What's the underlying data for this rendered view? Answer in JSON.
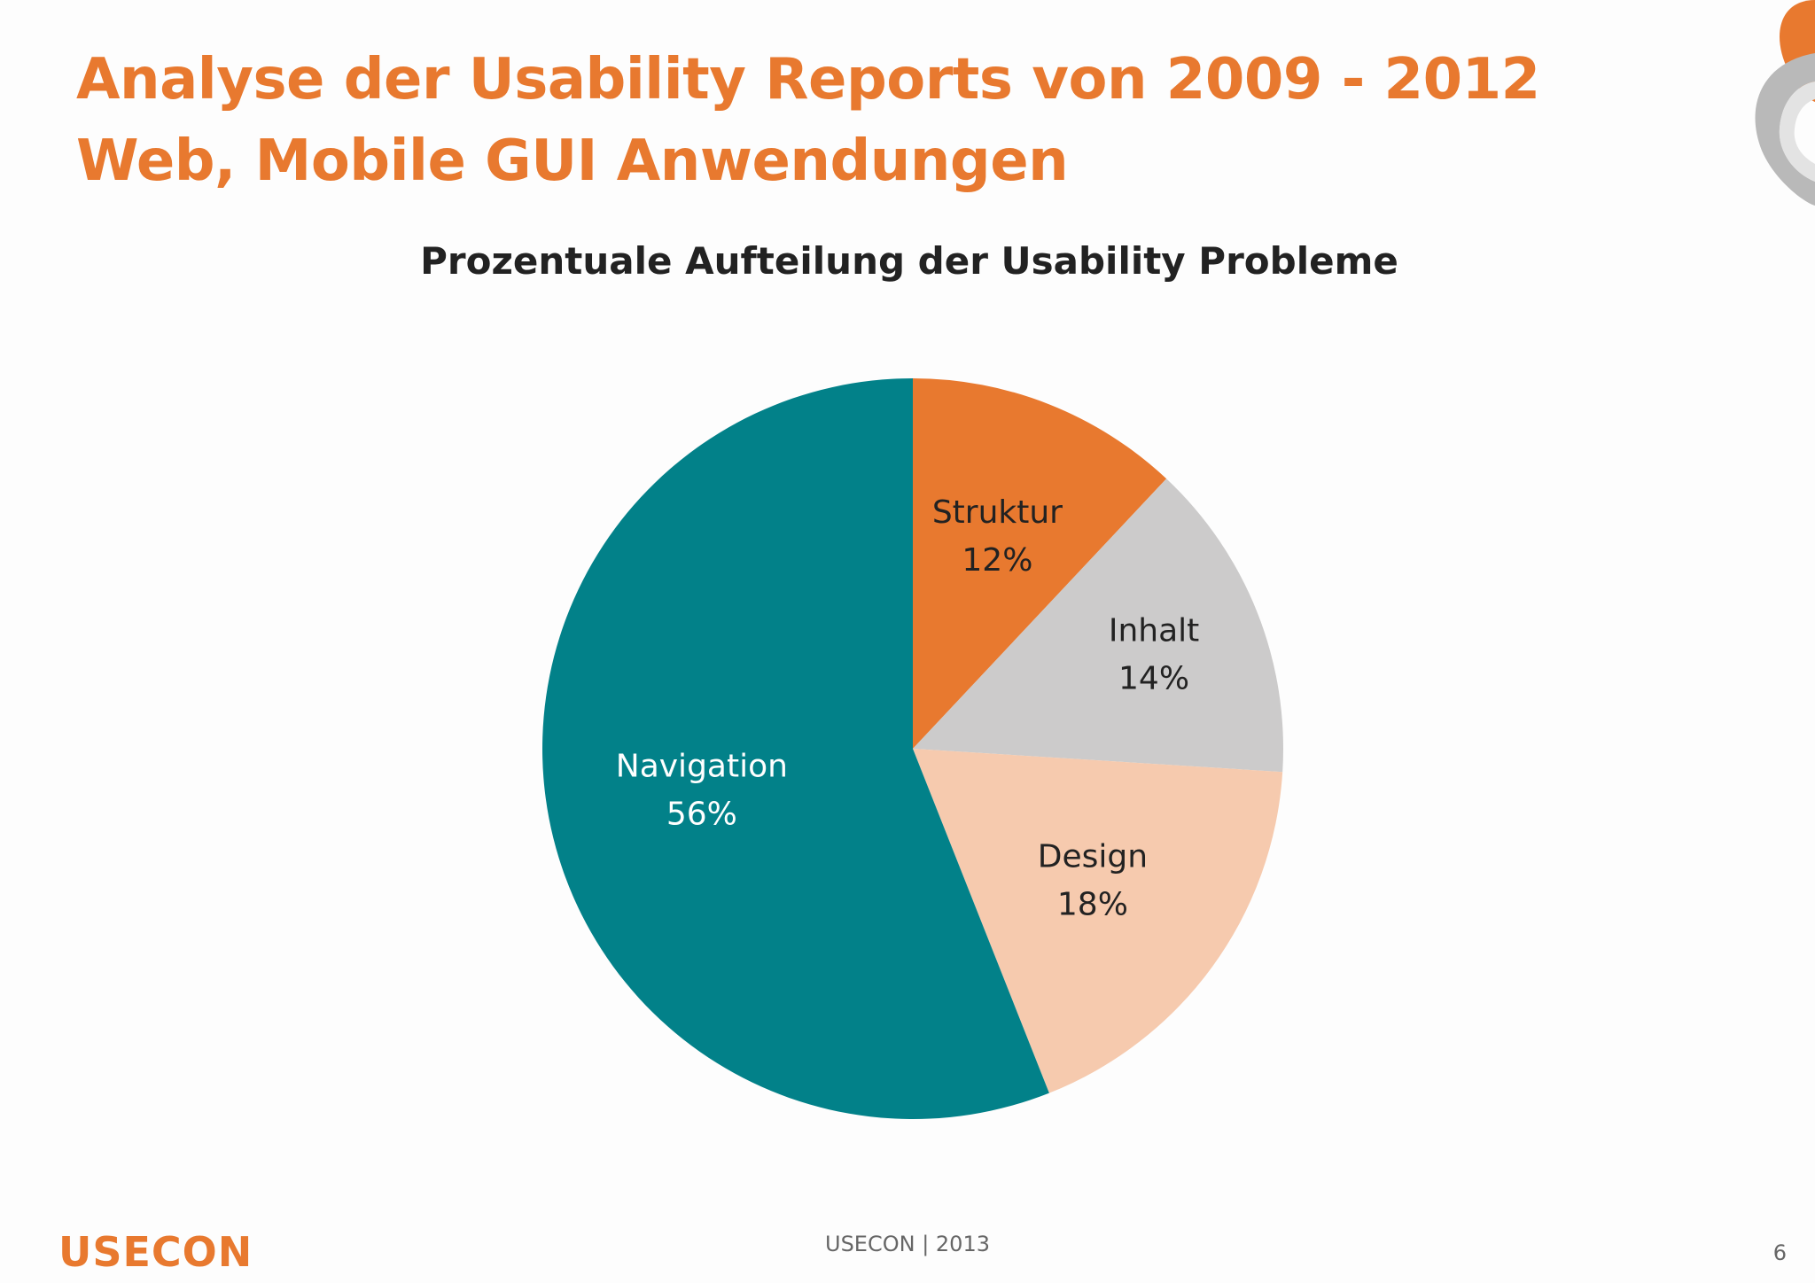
{
  "slide": {
    "title_lines": [
      "Analyse der Usability Reports von 2009 - 2012",
      "Web, Mobile GUI Anwendungen"
    ],
    "footer_text": "USECON  | 2013",
    "page_number": "6",
    "logo_text": "USECON"
  },
  "colors": {
    "title": "#e8792f",
    "struktur": "#e8792f",
    "inhalt": "#cccbcb",
    "design": "#f6caae",
    "navigation": "#028189"
  },
  "chart_data": {
    "type": "pie",
    "title": "Prozentuale Aufteilung der Usability Probleme",
    "categories": [
      "Struktur",
      "Inhalt",
      "Design",
      "Navigation"
    ],
    "values": [
      12,
      14,
      18,
      56
    ],
    "value_labels": [
      "12%",
      "14%",
      "18%",
      "56%"
    ],
    "legend": "none"
  }
}
